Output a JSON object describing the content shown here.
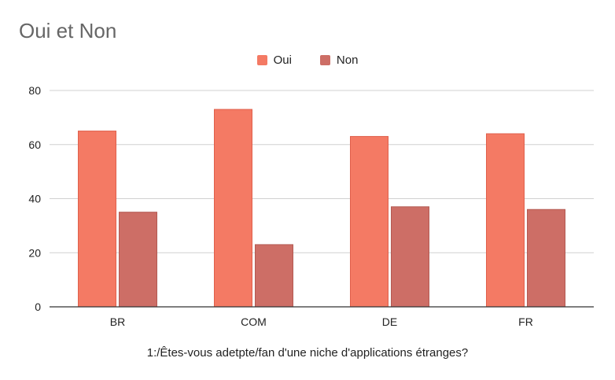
{
  "chart_data": {
    "type": "bar",
    "title": "Oui et Non",
    "xlabel": "1:/Êtes-vous adetpte/fan d'une niche d'applications étranges?",
    "ylabel": "",
    "categories": [
      "BR",
      "COM",
      "DE",
      "FR"
    ],
    "series": [
      {
        "name": "Oui",
        "values": [
          65,
          73,
          63,
          64
        ],
        "color": "#f47a64"
      },
      {
        "name": "Non",
        "values": [
          35,
          23,
          37,
          36
        ],
        "color": "#cd6e66"
      }
    ],
    "ylim": [
      0,
      80
    ],
    "yticks": [
      "0",
      "20",
      "40",
      "60",
      "80"
    ],
    "grid": true,
    "legend_position": "top-center"
  }
}
